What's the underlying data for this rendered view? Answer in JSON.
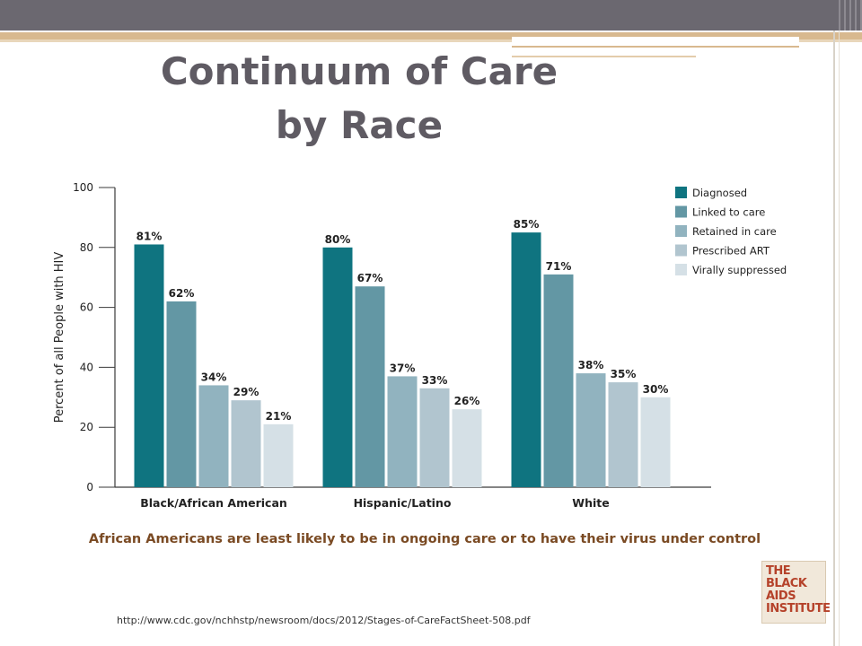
{
  "slide": {
    "title_line1": "Continuum of Care",
    "title_line2": "by Race",
    "caption": "African Americans are least likely to be in ongoing care or to have their virus under control",
    "source_url": "http://www.cdc.gov/nchhstp/newsroom/docs/2012/Stages-of-CareFactSheet-508.pdf",
    "logo_lines": [
      "THE BLACK",
      "AIDS",
      "INSTITUTE"
    ]
  },
  "colors": {
    "Diagnosed": "#0f7480",
    "Linked to care": "#6397a4",
    "Retained in care": "#91b3bf",
    "Prescribed ART": "#b1c5cf",
    "Virally suppressed": "#d5e0e6",
    "axis": "#3a3a3a",
    "caption": "#7a4a23"
  },
  "chart_data": {
    "type": "bar",
    "categories": [
      "Black/African American",
      "Hispanic/Latino",
      "White"
    ],
    "series": [
      {
        "name": "Diagnosed",
        "values": [
          81,
          80,
          85
        ]
      },
      {
        "name": "Linked to care",
        "values": [
          62,
          67,
          71
        ]
      },
      {
        "name": "Retained in care",
        "values": [
          34,
          37,
          38
        ]
      },
      {
        "name": "Prescribed ART",
        "values": [
          29,
          33,
          35
        ]
      },
      {
        "name": "Virally suppressed",
        "values": [
          21,
          26,
          30
        ]
      }
    ],
    "data_labels": [
      [
        "81%",
        "80%",
        "85%"
      ],
      [
        "62%",
        "67%",
        "71%"
      ],
      [
        "34%",
        "37%",
        "38%"
      ],
      [
        "29%",
        "33%",
        "35%"
      ],
      [
        "21%",
        "26%",
        "30%"
      ]
    ],
    "title": "",
    "xlabel": "",
    "ylabel": "Percent of all People with HIV",
    "ylim": [
      0,
      100
    ],
    "yticks": [
      "0",
      "20",
      "40",
      "60",
      "80",
      "100"
    ],
    "grid": false,
    "legend": "top-right"
  }
}
